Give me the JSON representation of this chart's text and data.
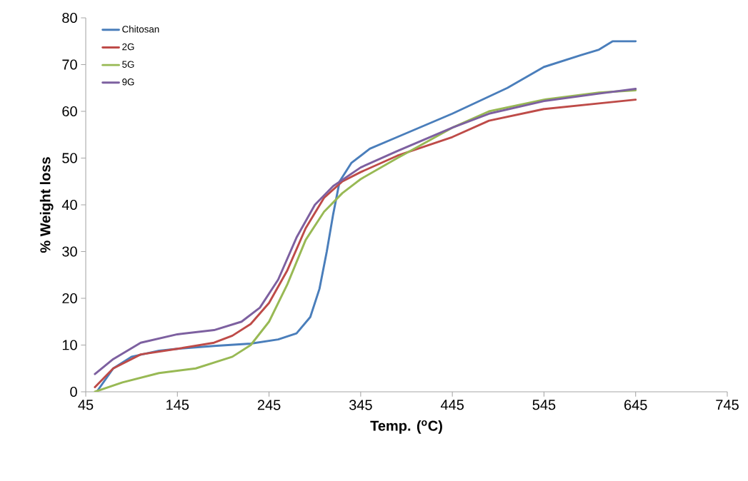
{
  "chart_data": {
    "type": "line",
    "xlabel": "Temp. ($^{o}$C)",
    "ylabel": "% Weight loss",
    "xlim": [
      45,
      745
    ],
    "xticks": [
      45,
      145,
      245,
      345,
      445,
      545,
      645,
      745
    ],
    "ylim": [
      0,
      80
    ],
    "yticks": [
      0,
      10,
      20,
      30,
      40,
      50,
      60,
      70,
      80
    ],
    "grid": false,
    "legend": "top left",
    "series": [
      {
        "name": "Chitosan",
        "color": "#4a7ebb",
        "x": [
          57,
          75,
          95,
          125,
          145,
          185,
          225,
          255,
          275,
          290,
          300,
          308,
          315,
          322,
          335,
          355,
          385,
          445,
          505,
          545,
          585,
          605,
          620,
          645
        ],
        "values": [
          0,
          5,
          7.5,
          8.8,
          9.2,
          9.8,
          10.3,
          11.2,
          12.5,
          16,
          22,
          30,
          38,
          45,
          49,
          52,
          54.5,
          59.5,
          65,
          69.5,
          72,
          73.2,
          75,
          75
        ]
      },
      {
        "name": "2G",
        "color": "#be4b48",
        "x": [
          55,
          75,
          105,
          145,
          185,
          205,
          225,
          245,
          265,
          285,
          305,
          325,
          345,
          385,
          445,
          485,
          545,
          605,
          645
        ],
        "values": [
          1,
          5,
          8,
          9.2,
          10.5,
          12,
          14.5,
          19,
          26,
          35,
          41.5,
          45,
          47,
          50.5,
          54.5,
          58,
          60.5,
          61.7,
          62.5
        ]
      },
      {
        "name": "5G",
        "color": "#98b954",
        "x": [
          55,
          85,
          125,
          165,
          205,
          225,
          245,
          265,
          285,
          305,
          325,
          345,
          385,
          445,
          485,
          545,
          605,
          645
        ],
        "values": [
          0,
          2,
          4,
          5,
          7.5,
          10,
          15,
          23,
          32.5,
          38.5,
          42.5,
          45.5,
          50,
          56.5,
          60,
          62.5,
          64,
          64.5
        ]
      },
      {
        "name": "9G",
        "color": "#7d60a0",
        "x": [
          55,
          75,
          105,
          145,
          185,
          215,
          235,
          255,
          275,
          295,
          315,
          345,
          385,
          445,
          485,
          545,
          605,
          645
        ],
        "values": [
          3.8,
          7,
          10.5,
          12.3,
          13.2,
          15,
          18,
          24,
          33,
          40,
          44,
          48,
          51.5,
          56.5,
          59.5,
          62.2,
          63.8,
          64.8
        ]
      }
    ]
  }
}
